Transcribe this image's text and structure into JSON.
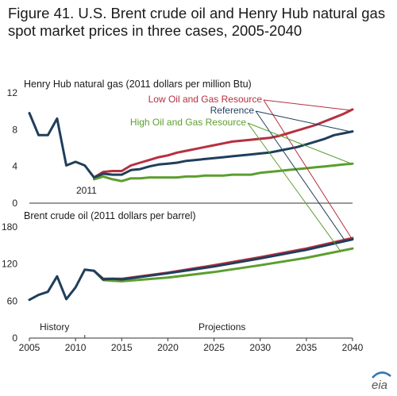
{
  "figure": {
    "title": "Figure 41. U.S. Brent crude oil and Henry Hub natural gas spot market prices in three cases, 2005-2040"
  },
  "logo": {
    "text": "eia",
    "icon": "eia-logo-icon",
    "accent": "#2e75b6"
  },
  "colors": {
    "low": "#b5303f",
    "reference": "#1f3e5c",
    "high": "#5c9e2e"
  },
  "chart_data": [
    {
      "type": "line",
      "title": "Henry Hub natural gas (2011 dollars per million Btu)",
      "xlim": [
        2005,
        2040
      ],
      "ylim": [
        0,
        12
      ],
      "yticks": [
        "0",
        "4",
        "8",
        "12"
      ],
      "annotations": [
        "2011"
      ],
      "legend": [
        "Low Oil and Gas Resource",
        "Reference",
        "High Oil and Gas Resource"
      ],
      "series": [
        {
          "name": "Low Oil and Gas Resource",
          "x": [
            2012,
            2013,
            2014,
            2015,
            2016,
            2017,
            2018,
            2019,
            2020,
            2021,
            2022,
            2023,
            2024,
            2025,
            2026,
            2027,
            2028,
            2029,
            2030,
            2031,
            2032,
            2033,
            2034,
            2035,
            2036,
            2037,
            2038,
            2039,
            2040
          ],
          "values": [
            2.8,
            3.4,
            3.5,
            3.5,
            4.1,
            4.4,
            4.7,
            5.0,
            5.2,
            5.5,
            5.7,
            5.9,
            6.1,
            6.3,
            6.5,
            6.7,
            6.8,
            6.9,
            7.0,
            7.1,
            7.3,
            7.6,
            7.9,
            8.2,
            8.5,
            8.9,
            9.3,
            9.7,
            10.2
          ]
        },
        {
          "name": "Reference",
          "x": [
            2005,
            2006,
            2007,
            2008,
            2009,
            2010,
            2011,
            2012,
            2013,
            2014,
            2015,
            2016,
            2017,
            2018,
            2019,
            2020,
            2021,
            2022,
            2023,
            2024,
            2025,
            2026,
            2027,
            2028,
            2029,
            2030,
            2031,
            2032,
            2033,
            2034,
            2035,
            2036,
            2037,
            2038,
            2039,
            2040
          ],
          "values": [
            9.8,
            7.4,
            7.4,
            9.2,
            4.1,
            4.5,
            4.1,
            2.8,
            3.2,
            3.1,
            3.1,
            3.6,
            3.7,
            4.0,
            4.2,
            4.3,
            4.4,
            4.6,
            4.7,
            4.8,
            4.9,
            5.0,
            5.1,
            5.2,
            5.3,
            5.4,
            5.5,
            5.7,
            5.9,
            6.1,
            6.4,
            6.7,
            7.0,
            7.4,
            7.6,
            7.8
          ]
        },
        {
          "name": "High Oil and Gas Resource",
          "x": [
            2012,
            2013,
            2014,
            2015,
            2016,
            2017,
            2018,
            2019,
            2020,
            2021,
            2022,
            2023,
            2024,
            2025,
            2026,
            2027,
            2028,
            2029,
            2030,
            2031,
            2032,
            2033,
            2034,
            2035,
            2036,
            2037,
            2038,
            2039,
            2040
          ],
          "values": [
            2.6,
            2.9,
            2.6,
            2.4,
            2.7,
            2.7,
            2.8,
            2.8,
            2.8,
            2.8,
            2.9,
            2.9,
            3.0,
            3.0,
            3.0,
            3.1,
            3.1,
            3.1,
            3.3,
            3.4,
            3.5,
            3.6,
            3.7,
            3.8,
            3.9,
            4.0,
            4.1,
            4.2,
            4.3
          ]
        }
      ]
    },
    {
      "type": "line",
      "title": "Brent crude oil (2011 dollars per barrel)",
      "xlim": [
        2005,
        2040
      ],
      "ylim": [
        0,
        180
      ],
      "xticks": [
        "2005",
        "2010",
        "2015",
        "2020",
        "2025",
        "2030",
        "2035",
        "2040"
      ],
      "yticks": [
        "0",
        "60",
        "120",
        "180"
      ],
      "annotations": [
        "History",
        "Projections"
      ],
      "series": [
        {
          "name": "Low Oil and Gas Resource",
          "x": [
            2012,
            2013,
            2014,
            2015,
            2020,
            2025,
            2030,
            2035,
            2040
          ],
          "values": [
            109,
            96,
            96,
            96,
            106,
            118,
            131,
            145,
            162
          ]
        },
        {
          "name": "Reference",
          "x": [
            2005,
            2006,
            2007,
            2008,
            2009,
            2010,
            2011,
            2012,
            2013,
            2014,
            2015,
            2020,
            2025,
            2030,
            2035,
            2040
          ],
          "values": [
            62,
            70,
            75,
            100,
            63,
            82,
            111,
            109,
            95,
            96,
            95,
            105,
            116,
            129,
            143,
            160
          ]
        },
        {
          "name": "High Oil and Gas Resource",
          "x": [
            2012,
            2013,
            2014,
            2015,
            2020,
            2025,
            2030,
            2035,
            2040
          ],
          "values": [
            109,
            94,
            93,
            92,
            98,
            107,
            118,
            130,
            145
          ]
        }
      ]
    }
  ]
}
